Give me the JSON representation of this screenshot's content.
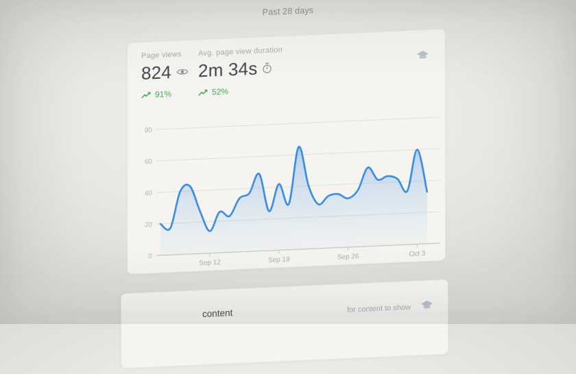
{
  "header": {
    "range_label": "Past 28 days"
  },
  "metrics_card": {
    "page_views": {
      "label": "Page views",
      "value": "824",
      "value_icon": "eye-icon",
      "delta": "91%",
      "delta_icon": "trending-up-icon"
    },
    "avg_duration": {
      "label": "Avg. page view duration",
      "value": "2m 34s",
      "value_icon": "stopwatch-icon",
      "delta": "52%",
      "delta_icon": "trending-up-icon"
    },
    "corner_icon": "graduation-cap-icon"
  },
  "chart_data": {
    "type": "area",
    "title": "",
    "xlabel": "",
    "ylabel": "",
    "x_range_days": 28,
    "x_tick_labels": [
      "Sep 12",
      "Sep 19",
      "Sep 26",
      "Oct 3"
    ],
    "x_tick_indices": [
      5,
      12,
      19,
      26
    ],
    "values": [
      20,
      17,
      40,
      43,
      27,
      14,
      26,
      23,
      34,
      37,
      49,
      25,
      42,
      29,
      65,
      40,
      28,
      33,
      34,
      31,
      36,
      50,
      42,
      44,
      42,
      34,
      60,
      33
    ],
    "yticks": [
      0,
      20,
      40,
      60,
      80
    ],
    "ylim": [
      0,
      88
    ],
    "grid": true,
    "legend": "none",
    "line_color": "#348be8",
    "fill_color_top": "rgba(92,152,222,0.40)",
    "fill_color_bottom": "rgba(150,195,235,0.05)"
  },
  "bottom_card": {
    "title_fragment": "content",
    "message_fragment": "for content to show",
    "corner_icon": "graduation-cap-icon"
  },
  "colors": {
    "positive_green": "#3fae57",
    "line_blue": "#348be8",
    "label_gray": "#a8adb1",
    "value_gray": "#45484b",
    "muted_header": "#8e9296",
    "icon_gray": "#8f9498",
    "cap_icon_blue": "#b7c1cd",
    "card_bg": "#f5f4f1",
    "grid_line": "#dfdedb",
    "axis_line": "#c7c6c3",
    "tick_label": "#a9adb1",
    "ytick_label": "#b1b5b8"
  }
}
